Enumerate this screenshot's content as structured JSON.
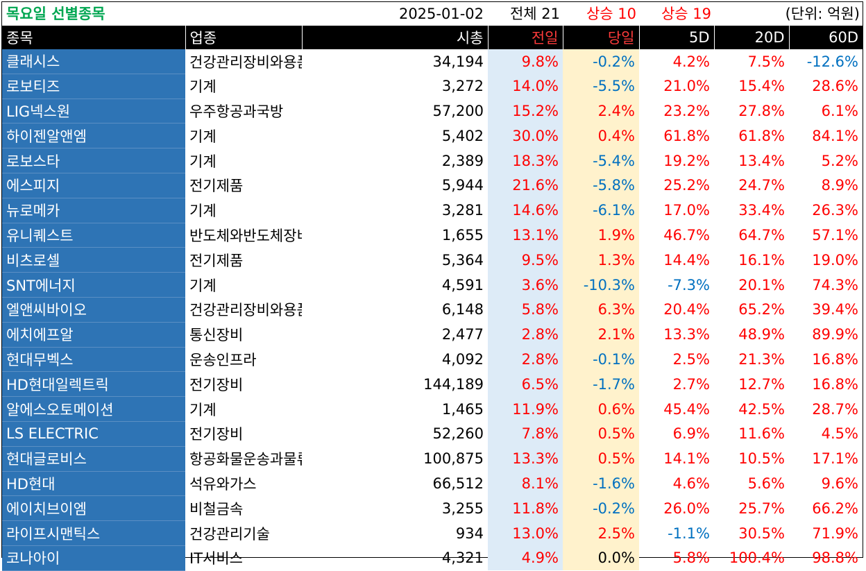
{
  "header": {
    "title": "목요일 선별종목",
    "date": "2025-01-02",
    "total": "전체 21",
    "up_prev": "상승 10",
    "up_today": "상승 19",
    "unit": "(단위: 억원)"
  },
  "columns": [
    "종목",
    "업종",
    "시총",
    "전일",
    "당일",
    "5D",
    "20D",
    "60D"
  ],
  "rows": [
    [
      "클래시스",
      "건강관리장비와용품",
      "34,194",
      "9.8%",
      "-0.2%",
      "4.2%",
      "7.5%",
      "-12.6%"
    ],
    [
      "로보티즈",
      "기계",
      "3,272",
      "14.0%",
      "-5.5%",
      "21.0%",
      "15.4%",
      "28.6%"
    ],
    [
      "LIG넥스원",
      "우주항공과국방",
      "57,200",
      "15.2%",
      "2.4%",
      "23.2%",
      "27.8%",
      "6.1%"
    ],
    [
      "하이젠알앤엠",
      "기계",
      "5,402",
      "30.0%",
      "0.4%",
      "61.8%",
      "61.8%",
      "84.1%"
    ],
    [
      "로보스타",
      "기계",
      "2,389",
      "18.3%",
      "-5.4%",
      "19.2%",
      "13.4%",
      "5.2%"
    ],
    [
      "에스피지",
      "전기제품",
      "5,944",
      "21.6%",
      "-5.8%",
      "25.2%",
      "24.7%",
      "8.9%"
    ],
    [
      "뉴로메카",
      "기계",
      "3,281",
      "14.6%",
      "-6.1%",
      "17.0%",
      "33.4%",
      "26.3%"
    ],
    [
      "유니퀘스트",
      "반도체와반도체장비",
      "1,655",
      "13.1%",
      "1.9%",
      "46.7%",
      "64.7%",
      "57.1%"
    ],
    [
      "비츠로셀",
      "전기제품",
      "5,364",
      "9.5%",
      "1.3%",
      "14.4%",
      "16.1%",
      "19.0%"
    ],
    [
      "SNT에너지",
      "기계",
      "4,591",
      "3.6%",
      "-10.3%",
      "-7.3%",
      "20.1%",
      "74.3%"
    ],
    [
      "엘앤씨바이오",
      "건강관리장비와용품",
      "6,148",
      "5.8%",
      "6.3%",
      "20.4%",
      "65.2%",
      "39.4%"
    ],
    [
      "에치에프알",
      "통신장비",
      "2,477",
      "2.8%",
      "2.1%",
      "13.3%",
      "48.9%",
      "89.9%"
    ],
    [
      "현대무벡스",
      "운송인프라",
      "4,092",
      "2.8%",
      "-0.1%",
      "2.5%",
      "21.3%",
      "16.8%"
    ],
    [
      "HD현대일렉트릭",
      "전기장비",
      "144,189",
      "6.5%",
      "-1.7%",
      "2.7%",
      "12.7%",
      "16.8%"
    ],
    [
      "알에스오토메이션",
      "기계",
      "1,465",
      "11.9%",
      "0.6%",
      "45.4%",
      "42.5%",
      "28.7%"
    ],
    [
      "LS ELECTRIC",
      "전기장비",
      "52,260",
      "7.8%",
      "0.5%",
      "6.9%",
      "11.6%",
      "4.5%"
    ],
    [
      "현대글로비스",
      "항공화물운송과물류",
      "100,875",
      "13.3%",
      "0.5%",
      "14.1%",
      "10.5%",
      "17.1%"
    ],
    [
      "HD현대",
      "석유와가스",
      "66,512",
      "8.1%",
      "-1.6%",
      "4.6%",
      "5.6%",
      "9.6%"
    ],
    [
      "에이치브이엠",
      "비철금속",
      "3,255",
      "11.8%",
      "-0.2%",
      "26.0%",
      "25.7%",
      "66.2%"
    ],
    [
      "라이프시맨틱스",
      "건강관리기술",
      "934",
      "13.0%",
      "2.5%",
      "-1.1%",
      "30.5%",
      "71.9%"
    ],
    [
      "코나아이",
      "IT서비스",
      "4,321",
      "4.9%",
      "0.0%",
      "5.8%",
      "100.4%",
      "98.8%"
    ]
  ],
  "colors": {
    "positive": "#ff0000",
    "negative": "#0070c0",
    "name_bg": "#2e74b5",
    "prev_bg": "#ddebf7",
    "today_bg": "#fff2cc",
    "title": "#00a651"
  }
}
